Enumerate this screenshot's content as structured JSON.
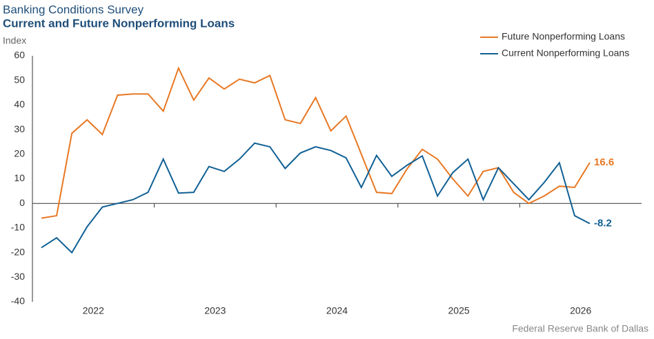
{
  "chart_data": {
    "type": "line",
    "title": "Banking Conditions Survey",
    "subtitle": "Current and Future Nonperforming Loans",
    "y_label": "Index",
    "source": "Federal Reserve Bank of Dallas",
    "years": [
      "2022",
      "2023",
      "2024",
      "2025",
      "2026"
    ],
    "ylim": [
      -40,
      60
    ],
    "yticks": [
      -40,
      -30,
      -20,
      -10,
      0,
      10,
      20,
      30,
      40,
      50,
      60
    ],
    "legend": "top-right",
    "series": [
      {
        "name": "Future Nonperforming Loans",
        "color": "#e87722",
        "values": [
          -6,
          -5,
          28.5,
          34,
          28,
          44,
          44.5,
          44.5,
          37.5,
          55,
          42,
          51,
          46.5,
          50.5,
          49,
          52,
          34,
          32.5,
          43,
          29.5,
          35.5,
          20,
          4.5,
          4,
          14,
          22,
          18,
          10,
          3,
          13,
          14.5,
          4.5,
          0,
          3,
          7,
          6.5,
          16.6
        ]
      },
      {
        "name": "Current Nonperforming Loans",
        "color": "#0f5f94",
        "values": [
          -18,
          -14,
          -20,
          -9.5,
          -1.5,
          0,
          1.5,
          4.5,
          18,
          4.2,
          4.5,
          15,
          13,
          18,
          24.5,
          23,
          14.2,
          20.5,
          23,
          21.5,
          18.5,
          6.5,
          19.5,
          11,
          15.5,
          19.3,
          3,
          12.5,
          18,
          1.5,
          14.5,
          8,
          1.5,
          8.5,
          16.5,
          -5,
          -8.2
        ]
      }
    ]
  }
}
